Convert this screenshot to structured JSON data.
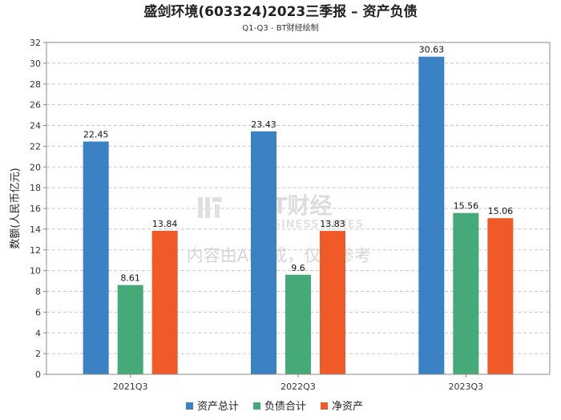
{
  "chart_data": {
    "type": "bar",
    "title": "盛剑环境(603324)2023三季报 – 资产负债",
    "subtitle": "Q1-Q3 - BT财经绘制",
    "xlabel": "",
    "ylabel": "数额(人民币亿元)",
    "categories": [
      "2021Q3",
      "2022Q3",
      "2023Q3"
    ],
    "ylim": [
      0,
      32
    ],
    "ytick_step": 2,
    "grid": true,
    "legend_position": "bottom-center",
    "series": [
      {
        "name": "资产总计",
        "color": "#3a82c4",
        "values": [
          22.45,
          23.43,
          30.63
        ]
      },
      {
        "name": "负债合计",
        "color": "#45aa78",
        "values": [
          8.61,
          9.6,
          15.56
        ]
      },
      {
        "name": "净资产",
        "color": "#f05a28",
        "values": [
          13.84,
          13.83,
          15.06
        ]
      }
    ]
  },
  "watermark": {
    "logo_text": "BT财经",
    "sub_text": "BUSINESS TIMES",
    "note": "内容由AI生成，仅供参考"
  }
}
